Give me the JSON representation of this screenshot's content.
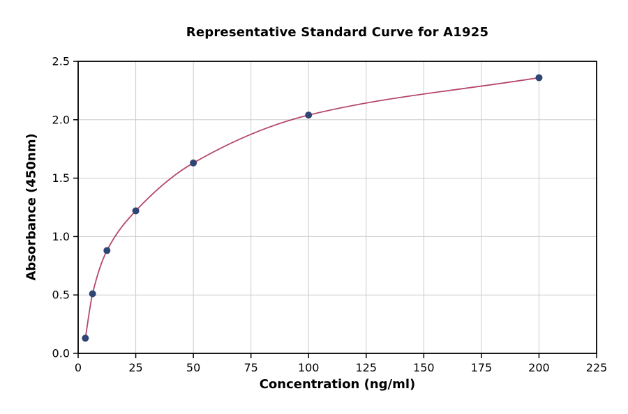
{
  "chart_data": {
    "type": "scatter",
    "title": "Representative Standard Curve for A1925",
    "xlabel": "Concentration (ng/ml)",
    "ylabel": "Absorbance (450nm)",
    "xlim": [
      0,
      225
    ],
    "ylim": [
      0,
      2.5
    ],
    "xticks": [
      0,
      25,
      50,
      75,
      100,
      125,
      150,
      175,
      200,
      225
    ],
    "xtick_labels": [
      "0",
      "25",
      "50",
      "75",
      "100",
      "125",
      "150",
      "175",
      "200",
      "225"
    ],
    "yticks": [
      0,
      0.5,
      1.0,
      1.5,
      2.0,
      2.5
    ],
    "ytick_labels": [
      "0.0",
      "0.5",
      "1.0",
      "1.5",
      "2.0",
      "2.5"
    ],
    "grid": true,
    "legend": "none",
    "points": [
      {
        "x": 3.125,
        "y": 0.13
      },
      {
        "x": 6.25,
        "y": 0.51
      },
      {
        "x": 12.5,
        "y": 0.88
      },
      {
        "x": 25,
        "y": 1.22
      },
      {
        "x": 50,
        "y": 1.63
      },
      {
        "x": 100,
        "y": 2.04
      },
      {
        "x": 200,
        "y": 2.36
      }
    ],
    "curve_description": "smooth saturating fit curve through all data points",
    "colors": {
      "point": "#2f4573",
      "curve": "#b5476b",
      "grid": "#cccccc",
      "axis": "#000000",
      "background": "#ffffff"
    }
  }
}
